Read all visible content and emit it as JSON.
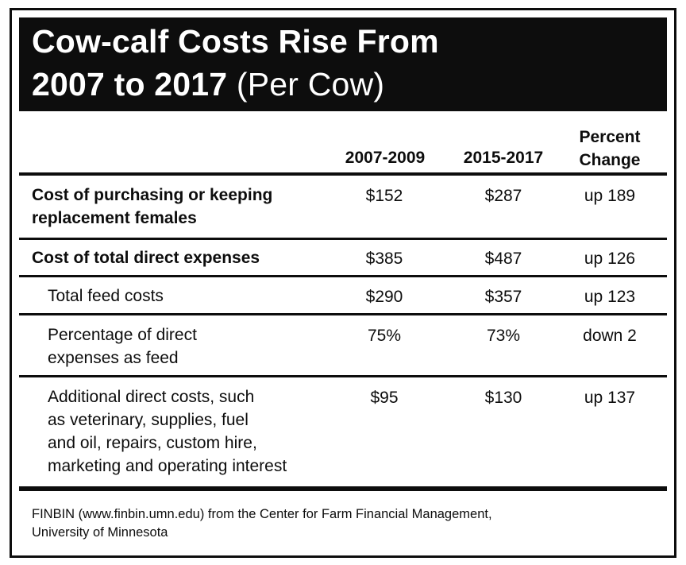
{
  "title": {
    "line1": "Cow-calf Costs Rise From",
    "line2_bold": "2007 to 2017",
    "line2_sub": "(Per Cow)"
  },
  "table": {
    "columns": [
      "2007-2009",
      "2015-2017",
      "Percent\nChange"
    ],
    "rows": [
      {
        "label": "Cost of purchasing or keeping\nreplacement females",
        "bold": true,
        "v1": "$152",
        "v2": "$287",
        "v3": "up 189"
      },
      {
        "label": "Cost of total direct expenses",
        "bold": true,
        "v1": "$385",
        "v2": "$487",
        "v3": "up 126"
      },
      {
        "label": "Total feed costs",
        "bold": false,
        "v1": "$290",
        "v2": "$357",
        "v3": "up 123"
      },
      {
        "label": "Percentage of direct\nexpenses as feed",
        "bold": false,
        "v1": "75%",
        "v2": "73%",
        "v3": "down 2"
      },
      {
        "label": "Additional direct costs, such\nas veterinary, supplies, fuel\nand oil, repairs, custom hire,\nmarketing and operating interest",
        "bold": false,
        "v1": "$95",
        "v2": "$130",
        "v3": "up 137"
      }
    ]
  },
  "source": "FINBIN (www.finbin.umn.edu) from the Center for Farm Financial Management,\nUniversity of Minnesota",
  "colors": {
    "ink": "#0d0d0d",
    "paper": "#ffffff"
  }
}
